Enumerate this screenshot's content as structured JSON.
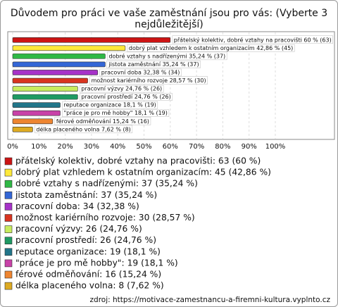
{
  "chart_data": {
    "type": "bar",
    "orientation": "horizontal",
    "title": "Důvodem pro práci ve vaše zaměstnání jsou pro vás: (Vyberte 3 nejdůležitější)",
    "categories": [
      "přátelský kolektiv, dobré vztahy na pracovišti",
      "dobrý plat vzhledem k ostatním organizacím",
      "dobré vztahy s nadřízenými",
      "jistota zaměstnání",
      "pracovní doba",
      "možnost kariérního rozvoje",
      "pracovní výzvy",
      "pracovní prostředí",
      "reputace organizace",
      "\"práce je pro mě hobby\"",
      "férové odměňování",
      "délka placeného volna"
    ],
    "values": [
      60,
      42.86,
      35.24,
      35.24,
      32.38,
      28.57,
      24.76,
      24.76,
      18.1,
      18.1,
      15.24,
      7.62
    ],
    "bar_labels": [
      "přátelský kolektiv, dobré vztahy na pracovišti 60 % (63)",
      "dobrý plat vzhledem k ostatním organizacím 42,86 % (45)",
      "dobré vztahy s nadřízenými 35,24 % (37)",
      "jistota zaměstnání 35,24 % (37)",
      "pracovní doba 32,38 % (34)",
      "možnost kariérního rozvoje 28,57 % (30)",
      "pracovní výzvy 24,76 % (26)",
      "pracovní prostředí 24,76 % (26)",
      "reputace organizace 18,1 % (19)",
      "\"práce je pro mě hobby\" 18,1 % (19)",
      "férové odměňování 15,24 % (16)",
      "délka placeného volna 7,62 % (8)"
    ],
    "legend_labels": [
      "přátelský kolektiv, dobré vztahy na pracovišti: 63 (60 %)",
      "dobrý plat vzhledem k ostatním organizacím: 45 (42,86 %)",
      "dobré vztahy s nadřízenými: 37 (35,24 %)",
      "jistota zaměstnání: 37 (35,24 %)",
      "pracovní doba: 34 (32,38 %)",
      "možnost kariérního rozvoje: 30 (28,57 %)",
      "pracovní výzvy: 26 (24,76 %)",
      "pracovní prostředí: 26 (24,76 %)",
      "reputace organizace: 19 (18,1 %)",
      "\"práce je pro mě hobby\": 19 (18,1 %)",
      "férové odměňování: 16 (15,24 %)",
      "délka placeného volna: 8 (7,62 %)"
    ],
    "colors": [
      "#cc1414",
      "#ffe93a",
      "#2fb845",
      "#3366d6",
      "#a632c8",
      "#d9341f",
      "#c8ec5e",
      "#1f9a63",
      "#22768a",
      "#c842a8",
      "#ee8530",
      "#ddaa22"
    ],
    "xlim": [
      0,
      100
    ],
    "xticks": [
      {
        "value": 0,
        "label": "0%"
      },
      {
        "value": 10,
        "label": "10%"
      },
      {
        "value": 20,
        "label": "20%"
      },
      {
        "value": 30,
        "label": "30%"
      },
      {
        "value": 40,
        "label": "40%"
      },
      {
        "value": 50,
        "label": "50%"
      },
      {
        "value": 60,
        "label": "60%"
      },
      {
        "value": 70,
        "label": "70%"
      },
      {
        "value": 80,
        "label": "80%"
      },
      {
        "value": 90,
        "label": "90%"
      },
      {
        "value": 100,
        "label": "100%"
      }
    ],
    "grid": true,
    "source": "zdroj: https://motivace-zamestnancu-a-firemni-kultura.vyplnto.cz"
  }
}
